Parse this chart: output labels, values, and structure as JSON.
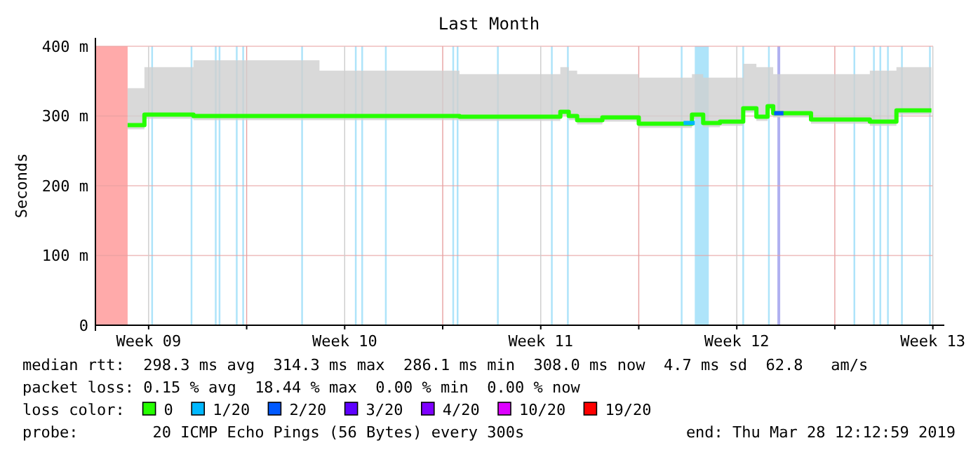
{
  "chart_data": {
    "type": "step",
    "title": "Last Month",
    "ylabel": "Seconds",
    "xlim": [
      "2019-02-26T14:24",
      "2019-03-28T12:13"
    ],
    "ylim": [
      0,
      400
    ],
    "xticks": [
      {
        "value": "2019-02-28T12:00",
        "label": "Week 09"
      },
      {
        "value": "2019-03-04T00:00",
        "label": null
      },
      {
        "value": "2019-03-07T12:00",
        "label": "Week 10"
      },
      {
        "value": "2019-03-11T00:00",
        "label": null
      },
      {
        "value": "2019-03-14T12:00",
        "label": "Week 11"
      },
      {
        "value": "2019-03-18T00:00",
        "label": null
      },
      {
        "value": "2019-03-21T12:00",
        "label": "Week 12"
      },
      {
        "value": "2019-03-25T00:00",
        "label": null
      },
      {
        "value": "2019-03-28T12:00",
        "label": "Week 13"
      }
    ],
    "yticks": [
      0,
      {
        "value": 100,
        "label": "100 m"
      },
      {
        "value": 200,
        "label": "200 m"
      },
      {
        "value": 300,
        "label": "300 m"
      },
      {
        "value": 400,
        "label": "400 m"
      }
    ],
    "grid": true,
    "legend": "bottom",
    "legend_title": "loss color:",
    "line_style": "solid",
    "series": [
      {
        "name": "0",
        "color": "#26ff00",
        "x": [
          "2019-02-27T18:00",
          "2019-02-28T08:24",
          "2019-03-02T02:24",
          "2019-03-06T14:24",
          "2019-03-11T14:24",
          "2019-03-15T04:48",
          "2019-03-15T12:00",
          "2019-03-15T19:12",
          "2019-03-16T04:48",
          "2019-03-16T16:48",
          "2019-03-18T00:00",
          "2019-03-19T21:36",
          "2019-03-20T07:12",
          "2019-03-20T21:36",
          "2019-03-21T17:30",
          "2019-03-22T04:48",
          "2019-03-22T14:24",
          "2019-03-22T19:12",
          "2019-03-24T03:36",
          "2019-03-26T06:00",
          "2019-03-27T04:48",
          "2019-03-28T10:48"
        ],
        "values": [
          287,
          302,
          300,
          300,
          299,
          306,
          300,
          294,
          294,
          298,
          289,
          302,
          290,
          292,
          311,
          299,
          314,
          304,
          295,
          292,
          308,
          308
        ],
        "lower": [
          281,
          296,
          294,
          294,
          293,
          300,
          294,
          288,
          288,
          292,
          283,
          296,
          284,
          286,
          305,
          293,
          308,
          298,
          289,
          286,
          302,
          302
        ],
        "upper": [
          340,
          370,
          380,
          365,
          360,
          370,
          365,
          360,
          360,
          360,
          355,
          360,
          355,
          355,
          375,
          370,
          370,
          360,
          360,
          365,
          370,
          370
        ]
      },
      {
        "name": "1/20",
        "color": "#00b8ff",
        "x": [
          "2019-03-19T14:24",
          "2019-03-20T00:00"
        ],
        "values": [
          290,
          290
        ]
      },
      {
        "name": "2/20",
        "color": "#0059ff",
        "x": [
          "2019-03-22T20:00",
          "2019-03-23T04:00"
        ],
        "values": [
          304,
          304
        ]
      },
      {
        "name": "3/20",
        "color": "#5e00ff"
      },
      {
        "name": "4/20",
        "color": "#7e00ff"
      },
      {
        "name": "10/20",
        "color": "#dd00ff"
      },
      {
        "name": "19/20",
        "color": "#ff0000"
      }
    ],
    "bands": [
      {
        "axis": "x",
        "from": "2019-02-26T14:24",
        "to": "2019-02-27T18:00",
        "color": "#ffaaaa"
      },
      {
        "axis": "x",
        "from": "2019-02-28T14:15",
        "to": "2019-02-28T15:45",
        "color": "#aee4fa"
      },
      {
        "axis": "x",
        "from": "2019-03-02T00:00",
        "to": "2019-03-02T01:30",
        "color": "#aee4fa"
      },
      {
        "axis": "x",
        "from": "2019-03-02T20:45",
        "to": "2019-03-02T22:15",
        "color": "#aee4fa"
      },
      {
        "axis": "x",
        "from": "2019-03-03T00:00",
        "to": "2019-03-03T01:30",
        "color": "#aee4fa"
      },
      {
        "axis": "x",
        "from": "2019-03-03T14:45",
        "to": "2019-03-03T16:15",
        "color": "#aee4fa"
      },
      {
        "axis": "x",
        "from": "2019-03-03T20:15",
        "to": "2019-03-03T21:45",
        "color": "#aee4fa"
      },
      {
        "axis": "x",
        "from": "2019-03-05T22:45",
        "to": "2019-03-06T00:15",
        "color": "#aee4fa"
      },
      {
        "axis": "x",
        "from": "2019-03-07T20:45",
        "to": "2019-03-07T22:15",
        "color": "#aee4fa"
      },
      {
        "axis": "x",
        "from": "2019-03-08T02:15",
        "to": "2019-03-08T03:45",
        "color": "#aee4fa"
      },
      {
        "axis": "x",
        "from": "2019-03-08T22:30",
        "to": "2019-03-09T00:00",
        "color": "#aee4fa"
      },
      {
        "axis": "x",
        "from": "2019-03-11T08:15",
        "to": "2019-03-11T09:45",
        "color": "#aee4fa"
      },
      {
        "axis": "x",
        "from": "2019-03-11T12:00",
        "to": "2019-03-11T13:30",
        "color": "#aee4fa"
      },
      {
        "axis": "x",
        "from": "2019-03-12T22:30",
        "to": "2019-03-13T00:00",
        "color": "#aee4fa"
      },
      {
        "axis": "x",
        "from": "2019-03-14T20:45",
        "to": "2019-03-14T22:15",
        "color": "#aee4fa"
      },
      {
        "axis": "x",
        "from": "2019-03-15T10:30",
        "to": "2019-03-15T12:00",
        "color": "#aee4fa"
      },
      {
        "axis": "x",
        "from": "2019-03-19T12:00",
        "to": "2019-03-19T13:30",
        "color": "#aee4fa"
      },
      {
        "axis": "x",
        "from": "2019-03-20T00:00",
        "to": "2019-03-20T12:00",
        "color": "#aee4fa"
      },
      {
        "axis": "x",
        "from": "2019-03-21T16:45",
        "to": "2019-03-21T18:15",
        "color": "#aee4fa"
      },
      {
        "axis": "x",
        "from": "2019-03-22T14:45",
        "to": "2019-03-22T16:15",
        "color": "#aee4fa"
      },
      {
        "axis": "x",
        "from": "2019-03-22T22:48",
        "to": "2019-03-23T01:12",
        "color": "#b0b0f0"
      },
      {
        "axis": "x",
        "from": "2019-03-25T16:00",
        "to": "2019-03-25T17:30",
        "color": "#aee4fa"
      },
      {
        "axis": "x",
        "from": "2019-03-26T08:45",
        "to": "2019-03-26T10:15",
        "color": "#aee4fa"
      },
      {
        "axis": "x",
        "from": "2019-03-26T14:15",
        "to": "2019-03-26T15:45",
        "color": "#aee4fa"
      },
      {
        "axis": "x",
        "from": "2019-03-26T20:45",
        "to": "2019-03-26T22:15",
        "color": "#aee4fa"
      },
      {
        "axis": "x",
        "from": "2019-03-27T08:45",
        "to": "2019-03-27T10:15",
        "color": "#aee4fa"
      },
      {
        "axis": "x",
        "from": "2019-03-28T08:45",
        "to": "2019-03-28T10:15",
        "color": "#aee4fa"
      }
    ],
    "annotations": [
      "median rtt:  298.3 ms avg  314.3 ms max  286.1 ms min  308.0 ms now  4.7 ms sd  62.8   am/s",
      "packet loss: 0.15 % avg  18.44 % max  0.00 % min  0.00 % now",
      "probe:        20 ICMP Echo Pings (56 Bytes) every 300s",
      "end: Thu Mar 28 12:12:59 2019"
    ]
  }
}
